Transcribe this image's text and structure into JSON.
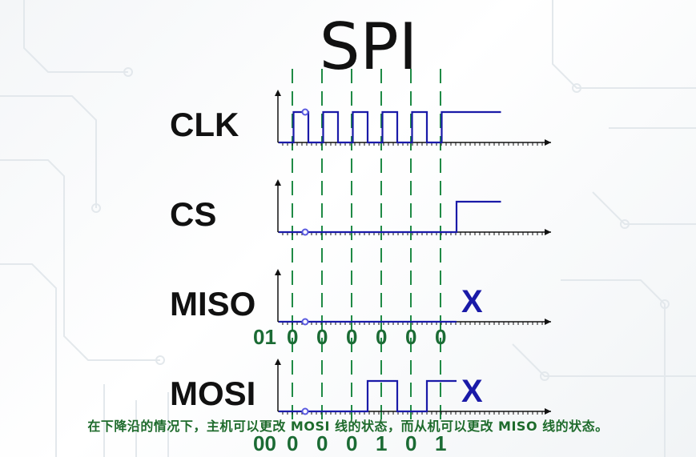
{
  "title": "SPI",
  "signals": [
    {
      "name": "CLK",
      "waveform": [
        0,
        1,
        0,
        1,
        0,
        1,
        0,
        1,
        0,
        1,
        0,
        1,
        1,
        1,
        1
      ]
    },
    {
      "name": "CS",
      "waveform": [
        0,
        0,
        0,
        0,
        0,
        0,
        0,
        0,
        0,
        0,
        0,
        0,
        1,
        1,
        1
      ]
    },
    {
      "name": "MISO",
      "waveform": [
        0,
        0,
        0,
        0,
        0,
        0,
        0,
        0,
        0,
        0,
        0,
        0
      ],
      "end_mark": "X"
    },
    {
      "name": "MOSI",
      "waveform": [
        0,
        0,
        0,
        0,
        0,
        0,
        1,
        1,
        0,
        0,
        1,
        1
      ],
      "end_mark": "X"
    }
  ],
  "miso_bits": [
    "01",
    "0",
    "0",
    "0",
    "0",
    "0",
    "0"
  ],
  "mosi_bits": [
    "00",
    "0",
    "0",
    "0",
    "1",
    "0",
    "1"
  ],
  "caption": "在下降沿的情况下，主机可以更改 MOSI 线的状态，而从机可以更改 MISO 线的状态。",
  "colors": {
    "waveform": "#1a1aa8",
    "clock_marker": "#1f8a45",
    "bits": "#1b6b34",
    "caption": "#1e6b2c",
    "axis": "#111111"
  }
}
